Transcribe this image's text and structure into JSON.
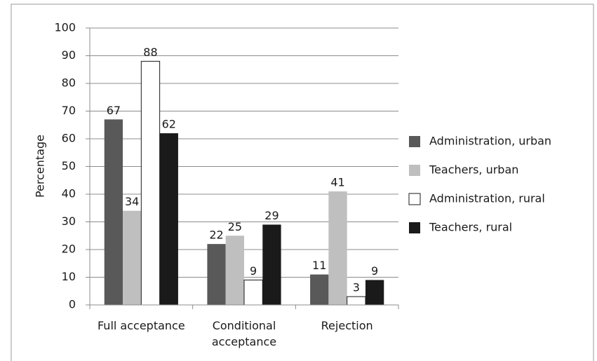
{
  "chart_data": {
    "type": "bar",
    "y_label": "Percentage",
    "categories": [
      "Full acceptance",
      "Conditional acceptance",
      "Rejection"
    ],
    "series": [
      {
        "name": "Administration, urban",
        "color": "#595959",
        "values": [
          67,
          22,
          11
        ]
      },
      {
        "name": "Teachers, urban",
        "color": "#bfbfbf",
        "values": [
          34,
          25,
          41
        ]
      },
      {
        "name": "Administration, rural",
        "color": "#ffffff",
        "values": [
          88,
          9,
          3
        ]
      },
      {
        "name": "Teachers, rural",
        "color": "#1a1a1a",
        "values": [
          62,
          29,
          9
        ]
      }
    ],
    "ylim": [
      0,
      100
    ],
    "yticks": [
      0,
      10,
      20,
      30,
      40,
      50,
      60,
      70,
      80,
      90,
      100
    ],
    "grid": true,
    "legend": "right"
  }
}
